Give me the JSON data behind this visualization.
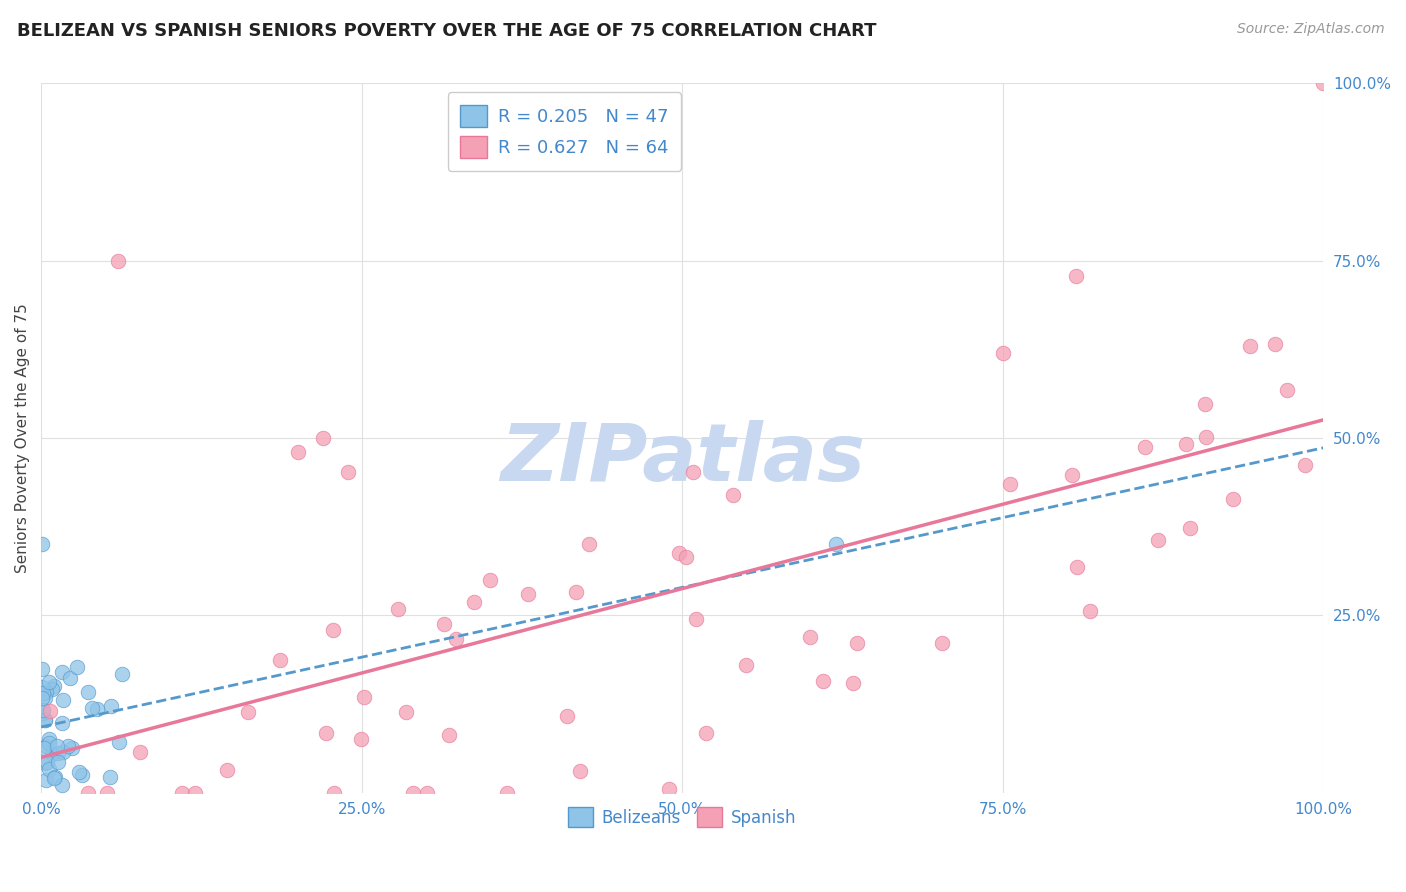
{
  "title": "BELIZEAN VS SPANISH SENIORS POVERTY OVER THE AGE OF 75 CORRELATION CHART",
  "source": "Source: ZipAtlas.com",
  "ylabel": "Seniors Poverty Over the Age of 75",
  "watermark": "ZIPatlas",
  "legend_label1": "Belizeans",
  "legend_label2": "Spanish",
  "R1": 0.205,
  "N1": 47,
  "R2": 0.627,
  "N2": 64,
  "color_blue": "#8ec4e8",
  "color_pink": "#f4a0b5",
  "color_blue_line": "#5599cc",
  "color_pink_line": "#e8789a",
  "background_color": "#ffffff",
  "grid_color": "#e0e0e0",
  "title_color": "#222222",
  "axis_label_color": "#444444",
  "tick_label_color": "#4488cc",
  "watermark_color": "#c8d8f0",
  "seed": 42
}
